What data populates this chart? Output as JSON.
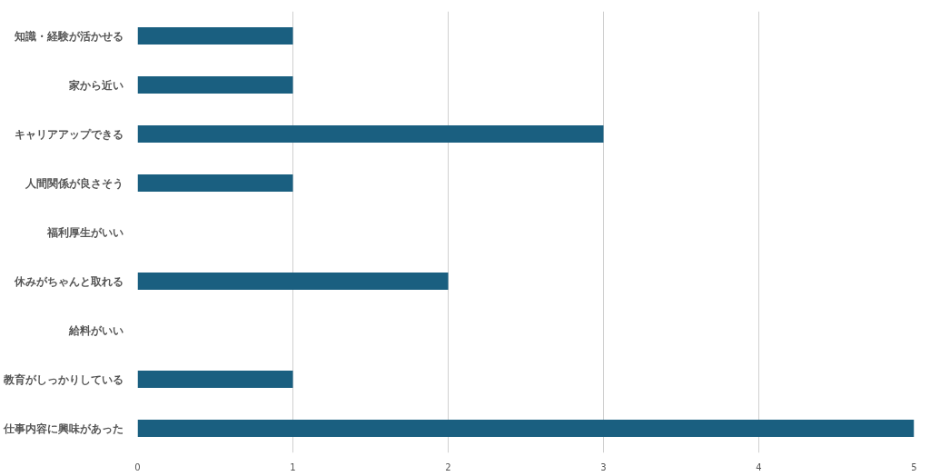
{
  "chart_data": {
    "type": "bar",
    "orientation": "horizontal",
    "categories": [
      "知識・経験が活かせる",
      "家から近い",
      "キャリアアップできる",
      "人間関係が良さそう",
      "福利厚生がいい",
      "休みがちゃんと取れる",
      "給料がいい",
      "教育がしっかりしている",
      "仕事内容に興味があった"
    ],
    "values": [
      1,
      1,
      3,
      1,
      0,
      2,
      0,
      1,
      5
    ],
    "color": "#1a5f80",
    "xlim": [
      0,
      5
    ],
    "xticks": [
      0,
      1,
      2,
      3,
      4,
      5
    ],
    "grid": "x"
  }
}
